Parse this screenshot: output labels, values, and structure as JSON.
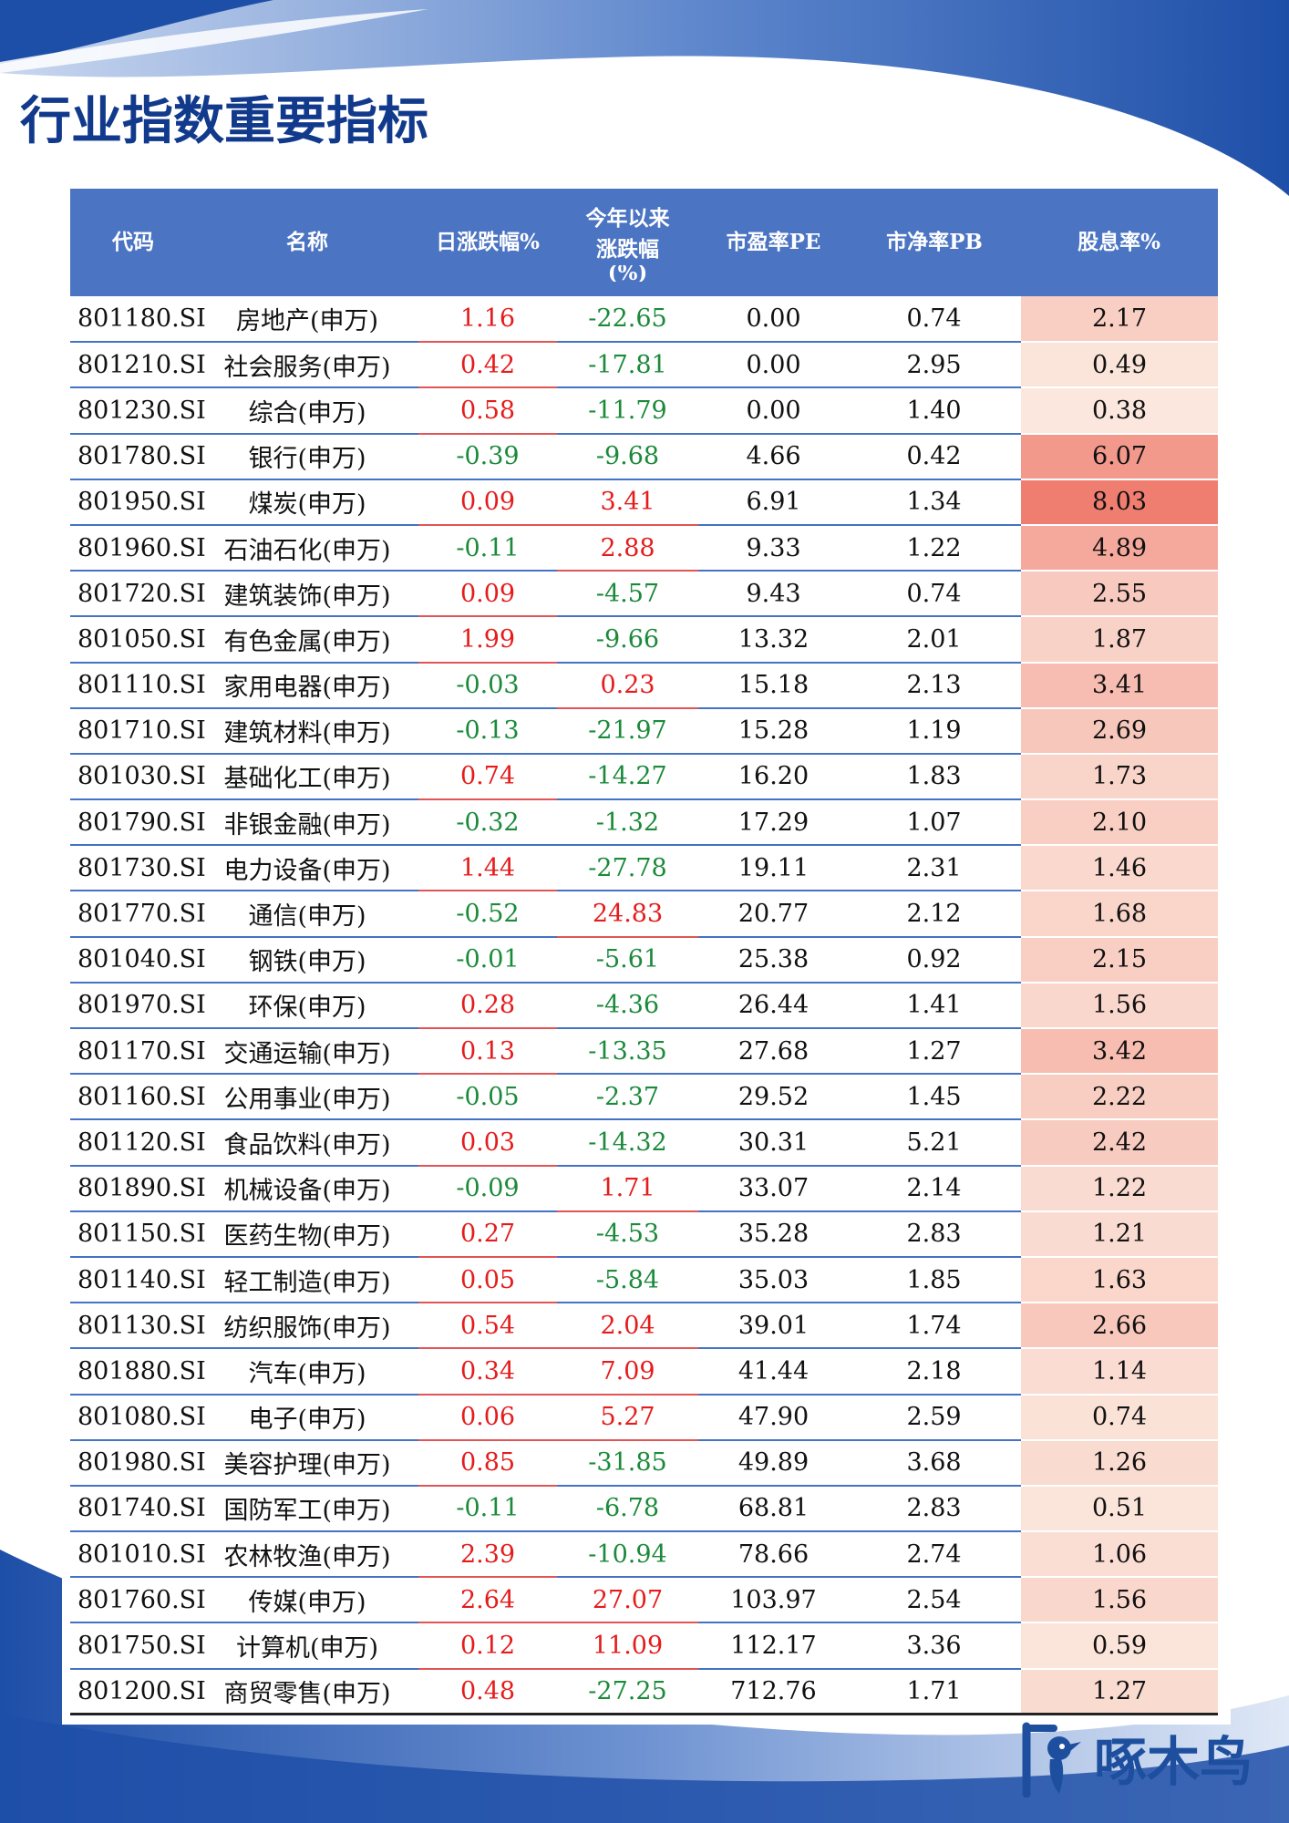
{
  "title": "行业指数重要指标",
  "colors": {
    "header_bg": "#4b74c2",
    "rise": "#e51c1c",
    "fall": "#1b8a3a",
    "dividend_heat": "#f07e70"
  },
  "table": {
    "headers": {
      "code": "代码",
      "name": "名称",
      "daily_change": "日涨跌幅%",
      "ytd_line1": "今年以来",
      "ytd_line2": "涨跌幅",
      "ytd_line3": "(%)",
      "pe": "市盈率PE",
      "pb": "市净率PB",
      "dividend": "股息率%"
    },
    "rows": [
      {
        "code": "801180.SI",
        "name": "房地产(申万)",
        "daily": "1.16",
        "ytd": "-22.65",
        "pe": "0.00",
        "pb": "0.74",
        "div": "2.17"
      },
      {
        "code": "801210.SI",
        "name": "社会服务(申万)",
        "daily": "0.42",
        "ytd": "-17.81",
        "pe": "0.00",
        "pb": "2.95",
        "div": "0.49"
      },
      {
        "code": "801230.SI",
        "name": "综合(申万)",
        "daily": "0.58",
        "ytd": "-11.79",
        "pe": "0.00",
        "pb": "1.40",
        "div": "0.38"
      },
      {
        "code": "801780.SI",
        "name": "银行(申万)",
        "daily": "-0.39",
        "ytd": "-9.68",
        "pe": "4.66",
        "pb": "0.42",
        "div": "6.07"
      },
      {
        "code": "801950.SI",
        "name": "煤炭(申万)",
        "daily": "0.09",
        "ytd": "3.41",
        "pe": "6.91",
        "pb": "1.34",
        "div": "8.03"
      },
      {
        "code": "801960.SI",
        "name": "石油石化(申万)",
        "daily": "-0.11",
        "ytd": "2.88",
        "pe": "9.33",
        "pb": "1.22",
        "div": "4.89"
      },
      {
        "code": "801720.SI",
        "name": "建筑装饰(申万)",
        "daily": "0.09",
        "ytd": "-4.57",
        "pe": "9.43",
        "pb": "0.74",
        "div": "2.55"
      },
      {
        "code": "801050.SI",
        "name": "有色金属(申万)",
        "daily": "1.99",
        "ytd": "-9.66",
        "pe": "13.32",
        "pb": "2.01",
        "div": "1.87"
      },
      {
        "code": "801110.SI",
        "name": "家用电器(申万)",
        "daily": "-0.03",
        "ytd": "0.23",
        "pe": "15.18",
        "pb": "2.13",
        "div": "3.41"
      },
      {
        "code": "801710.SI",
        "name": "建筑材料(申万)",
        "daily": "-0.13",
        "ytd": "-21.97",
        "pe": "15.28",
        "pb": "1.19",
        "div": "2.69"
      },
      {
        "code": "801030.SI",
        "name": "基础化工(申万)",
        "daily": "0.74",
        "ytd": "-14.27",
        "pe": "16.20",
        "pb": "1.83",
        "div": "1.73"
      },
      {
        "code": "801790.SI",
        "name": "非银金融(申万)",
        "daily": "-0.32",
        "ytd": "-1.32",
        "pe": "17.29",
        "pb": "1.07",
        "div": "2.10"
      },
      {
        "code": "801730.SI",
        "name": "电力设备(申万)",
        "daily": "1.44",
        "ytd": "-27.78",
        "pe": "19.11",
        "pb": "2.31",
        "div": "1.46"
      },
      {
        "code": "801770.SI",
        "name": "通信(申万)",
        "daily": "-0.52",
        "ytd": "24.83",
        "pe": "20.77",
        "pb": "2.12",
        "div": "1.68"
      },
      {
        "code": "801040.SI",
        "name": "钢铁(申万)",
        "daily": "-0.01",
        "ytd": "-5.61",
        "pe": "25.38",
        "pb": "0.92",
        "div": "2.15"
      },
      {
        "code": "801970.SI",
        "name": "环保(申万)",
        "daily": "0.28",
        "ytd": "-4.36",
        "pe": "26.44",
        "pb": "1.41",
        "div": "1.56"
      },
      {
        "code": "801170.SI",
        "name": "交通运输(申万)",
        "daily": "0.13",
        "ytd": "-13.35",
        "pe": "27.68",
        "pb": "1.27",
        "div": "3.42"
      },
      {
        "code": "801160.SI",
        "name": "公用事业(申万)",
        "daily": "-0.05",
        "ytd": "-2.37",
        "pe": "29.52",
        "pb": "1.45",
        "div": "2.22"
      },
      {
        "code": "801120.SI",
        "name": "食品饮料(申万)",
        "daily": "0.03",
        "ytd": "-14.32",
        "pe": "30.31",
        "pb": "5.21",
        "div": "2.42"
      },
      {
        "code": "801890.SI",
        "name": "机械设备(申万)",
        "daily": "-0.09",
        "ytd": "1.71",
        "pe": "33.07",
        "pb": "2.14",
        "div": "1.22"
      },
      {
        "code": "801150.SI",
        "name": "医药生物(申万)",
        "daily": "0.27",
        "ytd": "-4.53",
        "pe": "35.28",
        "pb": "2.83",
        "div": "1.21"
      },
      {
        "code": "801140.SI",
        "name": "轻工制造(申万)",
        "daily": "0.05",
        "ytd": "-5.84",
        "pe": "35.03",
        "pb": "1.85",
        "div": "1.63"
      },
      {
        "code": "801130.SI",
        "name": "纺织服饰(申万)",
        "daily": "0.54",
        "ytd": "2.04",
        "pe": "39.01",
        "pb": "1.74",
        "div": "2.66"
      },
      {
        "code": "801880.SI",
        "name": "汽车(申万)",
        "daily": "0.34",
        "ytd": "7.09",
        "pe": "41.44",
        "pb": "2.18",
        "div": "1.14"
      },
      {
        "code": "801080.SI",
        "name": "电子(申万)",
        "daily": "0.06",
        "ytd": "5.27",
        "pe": "47.90",
        "pb": "2.59",
        "div": "0.74"
      },
      {
        "code": "801980.SI",
        "name": "美容护理(申万)",
        "daily": "0.85",
        "ytd": "-31.85",
        "pe": "49.89",
        "pb": "3.68",
        "div": "1.26"
      },
      {
        "code": "801740.SI",
        "name": "国防军工(申万)",
        "daily": "-0.11",
        "ytd": "-6.78",
        "pe": "68.81",
        "pb": "2.83",
        "div": "0.51"
      },
      {
        "code": "801010.SI",
        "name": "农林牧渔(申万)",
        "daily": "2.39",
        "ytd": "-10.94",
        "pe": "78.66",
        "pb": "2.74",
        "div": "1.06"
      },
      {
        "code": "801760.SI",
        "name": "传媒(申万)",
        "daily": "2.64",
        "ytd": "27.07",
        "pe": "103.97",
        "pb": "2.54",
        "div": "1.56"
      },
      {
        "code": "801750.SI",
        "name": "计算机(申万)",
        "daily": "0.12",
        "ytd": "11.09",
        "pe": "112.17",
        "pb": "3.36",
        "div": "0.59"
      },
      {
        "code": "801200.SI",
        "name": "商贸零售(申万)",
        "daily": "0.48",
        "ytd": "-27.25",
        "pe": "712.76",
        "pb": "1.71",
        "div": "1.27"
      }
    ]
  },
  "logo": {
    "text": "啄木鸟",
    "icon": "woodpecker-logo-icon"
  }
}
